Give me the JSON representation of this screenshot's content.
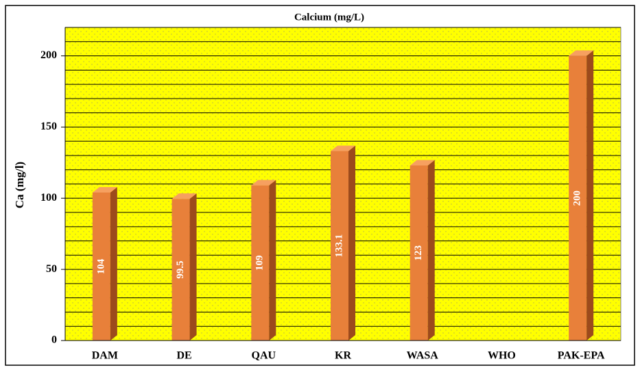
{
  "chart_data": {
    "type": "bar",
    "title": "Calcium (mg/L)",
    "ylabel": "Ca (mg/l)",
    "categories": [
      "DAM",
      "DE",
      "QAU",
      "KR",
      "WASA",
      "WHO",
      "PAK-EPA"
    ],
    "values": [
      104,
      99.5,
      109,
      133.1,
      123,
      null,
      200
    ],
    "color": "#e8803a",
    "background": "#ffff00",
    "ylim": [
      0,
      220
    ],
    "yticks": [
      0,
      50,
      100,
      150,
      200
    ],
    "yminor_ticks": [
      0,
      10,
      20,
      30,
      40,
      50,
      60,
      70,
      80,
      90,
      100,
      110,
      120,
      130,
      140,
      150,
      160,
      170,
      180,
      190,
      200,
      210,
      220
    ],
    "grid": true
  }
}
